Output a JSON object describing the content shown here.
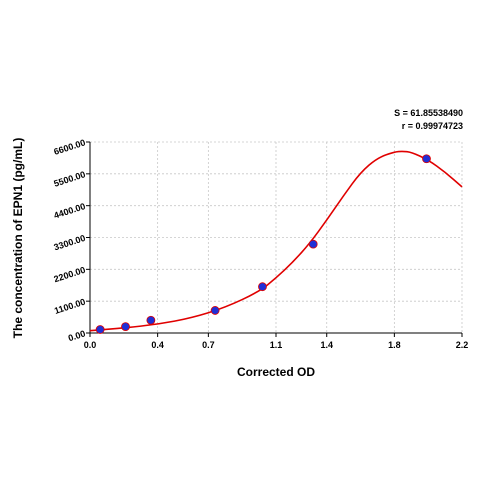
{
  "chart_data": {
    "type": "scatter",
    "xlabel": "Corrected OD",
    "ylabel": "The concentration of EPN1 (pg/mL)",
    "stats": [
      "S = 61.85538490",
      "r = 0.99974723"
    ],
    "xlim": [
      0.0,
      2.2
    ],
    "ylim": [
      0.0,
      6600.0
    ],
    "xticks": [
      0.0,
      0.4,
      0.7,
      1.1,
      1.4,
      1.8,
      2.2
    ],
    "xtick_labels": [
      "0.0",
      "0.4",
      "0.7",
      "1.1",
      "1.4",
      "1.8",
      "2.2"
    ],
    "yticks": [
      0,
      1100,
      2200,
      3300,
      4400,
      5500,
      6600
    ],
    "ytick_labels": [
      "0.00",
      "1100.00",
      "2200.00",
      "3300.00",
      "4400.00",
      "5500.00",
      "6600.00"
    ],
    "grid": true,
    "series": [
      {
        "kind": "points",
        "color": "#1f2fd6",
        "x": [
          0.06,
          0.21,
          0.36,
          0.74,
          1.02,
          1.32,
          1.99
        ],
        "y": [
          120,
          220,
          440,
          780,
          1600,
          3070,
          6020
        ]
      },
      {
        "kind": "fitted-curve",
        "color": "#e00000",
        "x": [
          0.0,
          0.2,
          0.4,
          0.6,
          0.8,
          1.0,
          1.1,
          1.2,
          1.3,
          1.4,
          1.5,
          1.6,
          1.7,
          1.8,
          1.85,
          1.9,
          2.0,
          2.1,
          2.2
        ],
        "y": [
          80,
          175,
          300,
          520,
          880,
          1430,
          1900,
          2450,
          3100,
          3900,
          4750,
          5550,
          6050,
          6260,
          6280,
          6250,
          5980,
          5560,
          5050
        ]
      }
    ]
  }
}
